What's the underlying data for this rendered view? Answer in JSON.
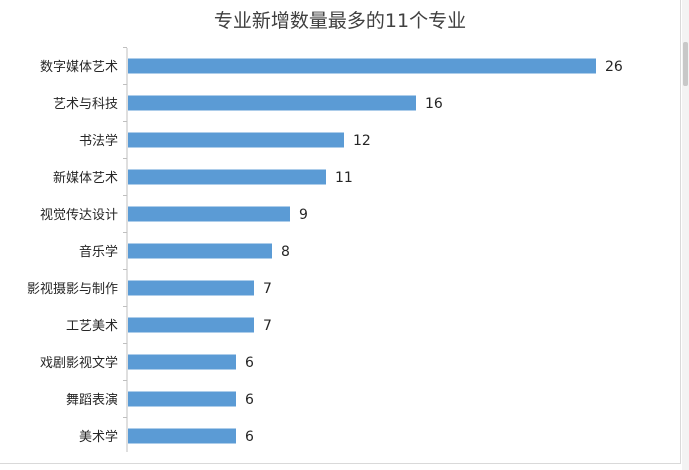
{
  "chart_data": {
    "type": "bar",
    "orientation": "horizontal",
    "title": "专业新增数量最多的11个专业",
    "xlabel": "",
    "ylabel": "",
    "categories": [
      "数字媒体艺术",
      "艺术与科技",
      "书法学",
      "新媒体艺术",
      "视觉传达设计",
      "音乐学",
      "影视摄影与制作",
      "工艺美术",
      "戏剧影视文学",
      "舞蹈表演",
      "美术学"
    ],
    "values": [
      26,
      16,
      12,
      11,
      9,
      8,
      7,
      7,
      6,
      6,
      6
    ],
    "xlim": [
      0,
      26
    ],
    "grid": false,
    "legend": "none",
    "bar_color": "#5b9bd5",
    "axis_color": "#bfbfbf"
  }
}
